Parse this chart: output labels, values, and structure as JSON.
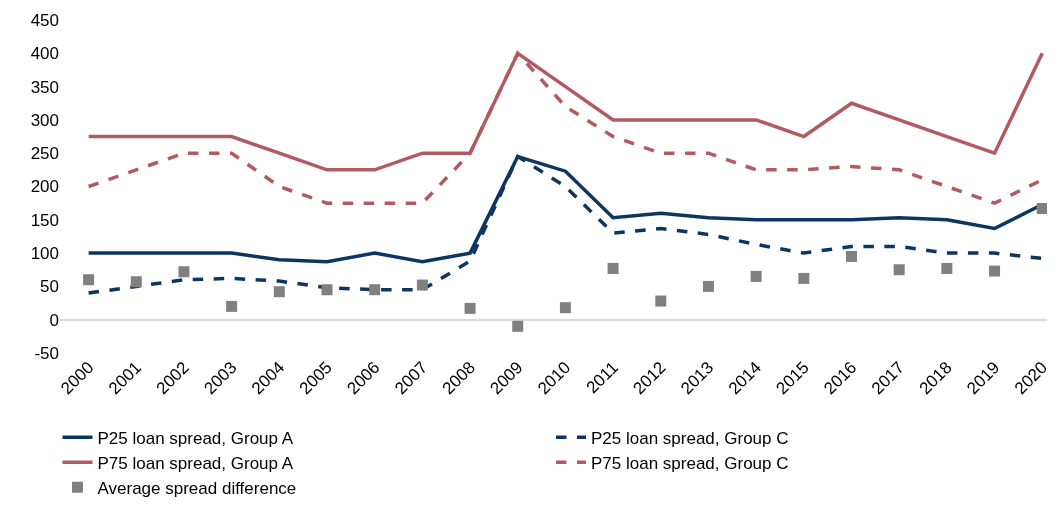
{
  "chart_data": {
    "type": "line",
    "categories": [
      "2000",
      "2001",
      "2002",
      "2003",
      "2004",
      "2005",
      "2006",
      "2007",
      "2008",
      "2009",
      "2010",
      "2011",
      "2012",
      "2013",
      "2014",
      "2015",
      "2016",
      "2017",
      "2018",
      "2019",
      "2020"
    ],
    "ylim": [
      -50,
      450
    ],
    "yticks": [
      -50,
      0,
      50,
      100,
      150,
      200,
      250,
      300,
      350,
      400,
      450
    ],
    "legend": "bottom",
    "series": [
      {
        "name": "P25 loan spread, Group A",
        "color": "#0d3561",
        "line_style": "solid",
        "values": [
          100,
          100,
          100,
          100,
          90,
          87,
          100,
          87,
          100,
          245,
          223,
          153,
          160,
          153,
          150,
          150,
          150,
          153,
          150,
          137,
          173
        ]
      },
      {
        "name": "P25 loan spread, Group C",
        "color": "#0d3561",
        "line_style": "dashed",
        "values": [
          40,
          50,
          60,
          62,
          58,
          48,
          45,
          45,
          88,
          245,
          200,
          130,
          137,
          128,
          113,
          100,
          110,
          110,
          100,
          100,
          92
        ]
      },
      {
        "name": "P75 loan spread, Group A",
        "color": "#b35a60",
        "line_style": "solid",
        "values": [
          275,
          275,
          275,
          275,
          250,
          225,
          225,
          250,
          250,
          400,
          350,
          300,
          300,
          300,
          300,
          275,
          325,
          300,
          275,
          250,
          400
        ]
      },
      {
        "name": "P75 loan spread, Group C",
        "color": "#b35a60",
        "line_style": "dashed",
        "values": [
          200,
          225,
          250,
          250,
          200,
          175,
          175,
          175,
          250,
          400,
          320,
          275,
          250,
          250,
          225,
          225,
          230,
          225,
          200,
          175,
          210
        ]
      },
      {
        "name": "Average spread difference",
        "type": "scatter",
        "marker": "square",
        "color": "#808080",
        "values": [
          60,
          57,
          72,
          20,
          42,
          45,
          45,
          52,
          17,
          -10,
          18,
          77,
          28,
          50,
          65,
          62,
          95,
          75,
          77,
          73,
          167
        ]
      }
    ]
  }
}
